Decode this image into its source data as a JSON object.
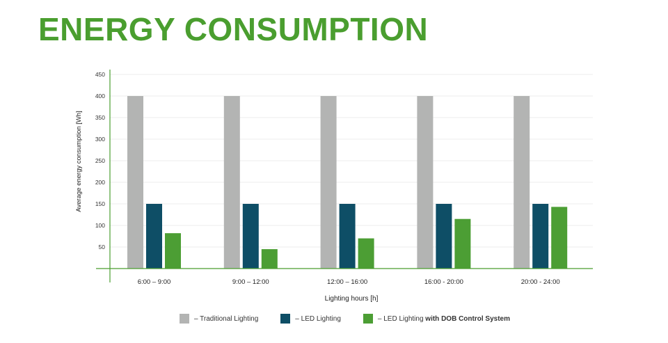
{
  "title": "ENERGY CONSUMPTION",
  "colors": {
    "traditional": "#b3b4b3",
    "led": "#0e4e66",
    "dob": "#4c9e34",
    "axis": "#4a9e2f",
    "grid": "#ececec"
  },
  "chart_data": {
    "type": "bar",
    "xlabel": "Lighting hours [h]",
    "ylabel": "Average energy consumption [Wh]",
    "ylim": [
      0,
      450
    ],
    "yticks": [
      50,
      100,
      150,
      200,
      250,
      300,
      350,
      400,
      450
    ],
    "grid": true,
    "legend_position": "bottom",
    "categories": [
      "6:00 – 9:00",
      "9:00 – 12:00",
      "12:00 – 16:00",
      "16:00 - 20:00",
      "20:00 - 24:00"
    ],
    "series": [
      {
        "name": "– Traditional Lighting",
        "color_key": "traditional",
        "values": [
          400,
          400,
          400,
          400,
          400
        ]
      },
      {
        "name": "– LED Lighting",
        "color_key": "led",
        "values": [
          150,
          150,
          150,
          150,
          150
        ]
      },
      {
        "name": "– LED Lighting with DOB Control System",
        "color_key": "dob",
        "values": [
          82,
          45,
          70,
          115,
          143
        ]
      }
    ]
  },
  "legend": [
    {
      "text": "– Traditional Lighting",
      "bold": "",
      "color_key": "traditional"
    },
    {
      "text": "– LED Lighting",
      "bold": "",
      "color_key": "led"
    },
    {
      "text": "– LED Lighting ",
      "bold": "with DOB Control System",
      "color_key": "dob"
    }
  ]
}
